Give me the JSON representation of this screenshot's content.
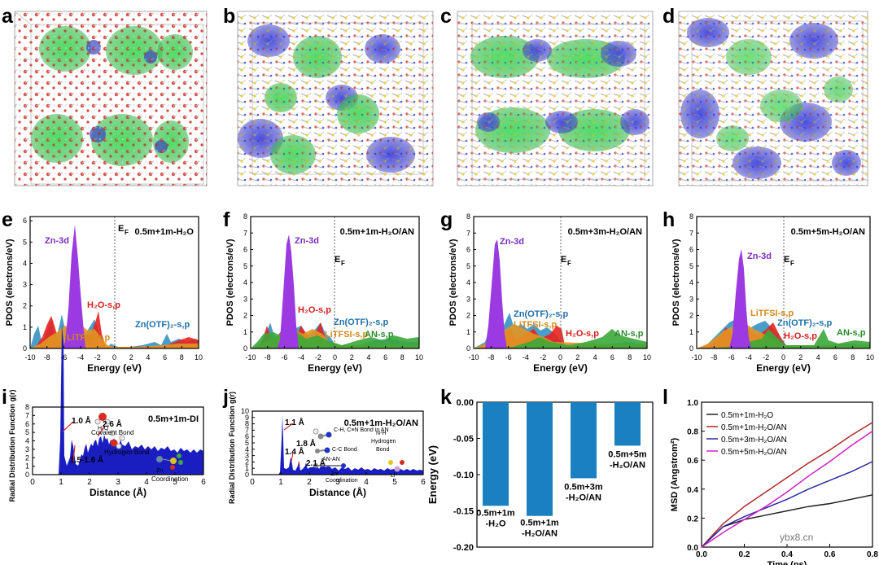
{
  "panel_letters": [
    "a",
    "b",
    "c",
    "d",
    "e",
    "f",
    "g",
    "h",
    "i",
    "j",
    "k",
    "l"
  ],
  "pdos": {
    "ylabel": "PDOS (electrons/eV)",
    "xlabel": "Energy (eV)",
    "ef_label": "E",
    "ef_sub": "F",
    "xticks": [
      "-10",
      "-8",
      "-6",
      "-4",
      "-2",
      "0",
      "2",
      "4",
      "6",
      "8",
      "10"
    ],
    "panels": [
      {
        "title": "0.5m+1m-H₂O",
        "yticks": [
          "0",
          "1",
          "2",
          "3",
          "4",
          "5",
          "6"
        ],
        "labels": {
          "zn": "Zn-3d",
          "h2o": "H₂O-s,p",
          "otf": "Zn(OTF)₂-s,p",
          "litfsi": "LiTFSI-s,p"
        }
      },
      {
        "title": "0.5m+1m-H₂O/AN",
        "yticks": [
          "0",
          "1",
          "2",
          "3",
          "4",
          "5",
          "6",
          "7",
          "8"
        ],
        "labels": {
          "zn": "Zn-3d",
          "h2o": "H₂O-s,p",
          "otf": "Zn(OTF)₂-s,p",
          "litfsi": "LiTFSI-s,p",
          "an": "AN-s,p"
        }
      },
      {
        "title": "0.5m+3m-H₂O/AN",
        "yticks": [
          "0",
          "1",
          "2",
          "3",
          "4",
          "5",
          "6",
          "7",
          "8"
        ],
        "labels": {
          "zn": "Zn-3d",
          "h2o": "H₂O-s,p",
          "otf": "Zn(OTF)₂-s,p",
          "litfsi": "LiTFSI-s,p",
          "an": "AN-s,p"
        }
      },
      {
        "title": "0.5m+5m-H₂O/AN",
        "yticks": [
          "0",
          "1",
          "2",
          "3",
          "4",
          "5",
          "6",
          "7",
          "8"
        ],
        "labels": {
          "zn": "Zn-3d",
          "h2o": "H₂O-s,p",
          "otf": "Zn(OTF)₂-s,p",
          "litfsi": "LiTFSI-s,p",
          "an": "AN-s,p"
        }
      }
    ]
  },
  "rdf_i": {
    "title": "0.5m+1m-DI",
    "ylabel": "Radial Distribution Function g(r)",
    "xlabel": "Distance (Å)",
    "xticks": [
      "0",
      "1",
      "2",
      "3",
      "4",
      "5",
      "6"
    ],
    "yticks": [
      "0",
      "1",
      "2",
      "3",
      "4",
      "5",
      "6",
      "7",
      "8"
    ],
    "annotations": {
      "a1": "1.0 Å",
      "a2": "1.5-1.6 Å",
      "a3": "2.6 Å"
    },
    "legend": {
      "covalent": "Covalent Bond",
      "h2o": "H₂O",
      "hydrogen": "Hydrogen Bond",
      "zn": "Zn",
      "coord": "Coordination"
    }
  },
  "rdf_j": {
    "title": "0.5m+1m-H₂O/AN",
    "ylabel": "Radial Distribution Function g(r)",
    "xlabel": "Distance (Å)",
    "xticks": [
      "0",
      "1",
      "2",
      "3",
      "4",
      "5",
      "6"
    ],
    "yticks": [
      "0",
      "1",
      "2",
      "3",
      "4",
      "5",
      "6",
      "7",
      "8",
      "9",
      "10"
    ],
    "annotations": {
      "a1": "1.1 Å",
      "a2": "1.4 Å",
      "a3": "1.8 Å",
      "a4": "2.1 Å"
    },
    "legend": {
      "ch": "C-H, C≡N Bond in AN",
      "cc": "C-C Bond",
      "anan": "AN-AN",
      "nh": "N-H",
      "hydrogen": "Hydrogen",
      "bond": "Bond",
      "zn": "Zn",
      "li": "Li",
      "coord": "Coordination"
    }
  },
  "chart_data": [
    {
      "panel": "k",
      "type": "bar",
      "ylabel": "Energy (eV)",
      "ylim": [
        -0.2,
        0.0
      ],
      "yticks": [
        "0.00",
        "-0.05",
        "-0.10",
        "-0.15",
        "-0.20"
      ],
      "categories": [
        [
          "0.5m+1m",
          "-H₂O"
        ],
        [
          "0.5m+1m",
          "-H₂O/AN"
        ],
        [
          "0.5m+3m",
          "-H₂O/AN"
        ],
        [
          "0.5m+5m",
          "-H₂O/AN"
        ]
      ],
      "values": [
        -0.143,
        -0.157,
        -0.105,
        -0.06
      ],
      "color": "#1a80bf"
    },
    {
      "panel": "l",
      "type": "line",
      "xlabel": "Time (ps)",
      "ylabel": "MSD (Angstrom²)",
      "xlim": [
        0.0,
        0.8
      ],
      "ylim": [
        0.0,
        1.0
      ],
      "xticks": [
        "0.0",
        "0.2",
        "0.4",
        "0.6",
        "0.8"
      ],
      "yticks": [
        "0.0",
        "0.2",
        "0.4",
        "0.6",
        "0.8",
        "1.0"
      ],
      "x": [
        0,
        0.1,
        0.2,
        0.3,
        0.4,
        0.5,
        0.6,
        0.7,
        0.8
      ],
      "series": [
        {
          "name": "0.5m+1m-H₂O",
          "color": "#222222",
          "values": [
            0,
            0.14,
            0.19,
            0.22,
            0.25,
            0.28,
            0.3,
            0.33,
            0.36
          ]
        },
        {
          "name": "0.5m+1m-H₂O/AN",
          "color": "#b02828",
          "values": [
            0,
            0.16,
            0.28,
            0.38,
            0.48,
            0.58,
            0.67,
            0.77,
            0.86
          ]
        },
        {
          "name": "0.5m+3m-H₂O/AN",
          "color": "#2a2aa0",
          "values": [
            0,
            0.14,
            0.21,
            0.27,
            0.33,
            0.4,
            0.46,
            0.52,
            0.59
          ]
        },
        {
          "name": "0.5m+5m-H₂O/AN",
          "color": "#d21ec8",
          "values": [
            0,
            0.1,
            0.19,
            0.28,
            0.38,
            0.49,
            0.59,
            0.7,
            0.8
          ]
        }
      ]
    }
  ],
  "watermark": "ybx8.cn"
}
